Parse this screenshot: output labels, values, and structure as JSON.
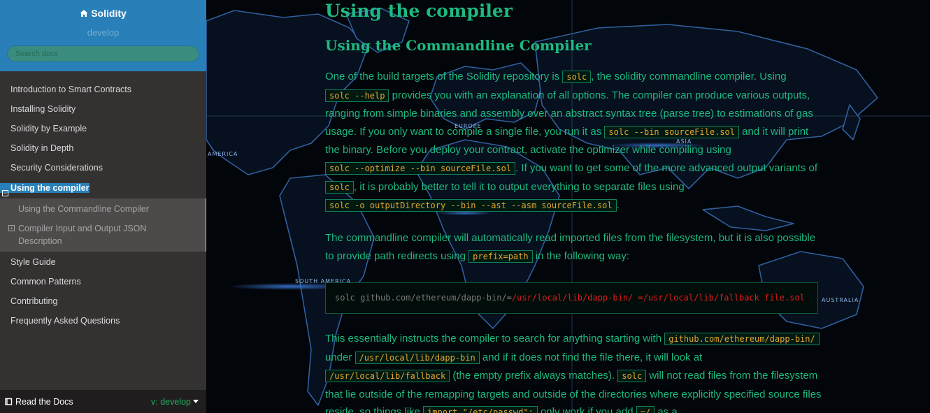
{
  "sidebar": {
    "project_name": "Solidity",
    "version": "develop",
    "search_placeholder": "Search docs",
    "nav": [
      "Introduction to Smart Contracts",
      "Installing Solidity",
      "Solidity by Example",
      "Solidity in Depth",
      "Security Considerations"
    ],
    "current": {
      "label": "Using the compiler",
      "toggle": "−",
      "sub": [
        {
          "label": "Using the Commandline Compiler"
        },
        {
          "label": "Compiler Input and Output JSON Description",
          "toggle": "+"
        }
      ]
    },
    "nav_after": [
      "Style Guide",
      "Common Patterns",
      "Contributing",
      "Frequently Asked Questions"
    ],
    "footer": {
      "read_the_docs": "Read the Docs",
      "version_switch": "v: develop"
    }
  },
  "background_labels": [
    "AMERICA",
    "EUROPE",
    "ASIA",
    "SOUTH AMERICA",
    "AUSTRALIA"
  ],
  "main": {
    "h1": "Using the compiler",
    "h2": "Using the Commandline Compiler",
    "p1": [
      "One of the build targets of the Solidity repository is ",
      "solc",
      ", the solidity commandline compiler. Using ",
      "solc --help",
      " provides you with an explanation of all options. The compiler can produce various outputs, ranging from simple binaries and assembly over an abstract syntax tree (parse tree) to estimations of gas usage. If you only want to compile a single file, you run it as ",
      "solc --bin sourceFile.sol",
      " and it will print the binary. Before you deploy your contract, activate the optimizer while compiling using ",
      "solc --optimize --bin sourceFile.sol",
      ". If you want to get some of the more advanced output variants of ",
      "solc",
      ", it is probably better to tell it to output everything to separate files using ",
      "solc -o outputDirectory --bin --ast --asm sourceFile.sol",
      "."
    ],
    "p2": [
      "The commandline compiler will automatically read imported files from the filesystem, but it is also possible to provide path redirects using ",
      "prefix=path",
      " in the following way:"
    ],
    "code_block": {
      "plain": "solc github.com/ethereum/dapp-bin/=",
      "highlight": "/usr/local/lib/dapp-bin/ =/usr/local/lib/fallback file.sol"
    },
    "p3": [
      "This essentially instructs the compiler to search for anything starting with ",
      "github.com/ethereum/dapp-bin/",
      " under ",
      "/usr/local/lib/dapp-bin",
      " and if it does not find the file there, it will look at ",
      "/usr/local/lib/fallback",
      " (the empty prefix always matches). ",
      "solc",
      " will not read files from the filesystem that lie outside of the remapping targets and outside of the directories where explicitly specified source files reside, so things like ",
      "import \"/etc/passwd\";",
      " only work if you add ",
      "=/",
      " as a"
    ]
  },
  "colors": {
    "sidebar_bg": "#343131",
    "accent": "#2980b9",
    "text_green": "#1db980",
    "code_orange": "#e7a530",
    "error_red": "#e01b1b",
    "version_green": "#27ae60"
  }
}
